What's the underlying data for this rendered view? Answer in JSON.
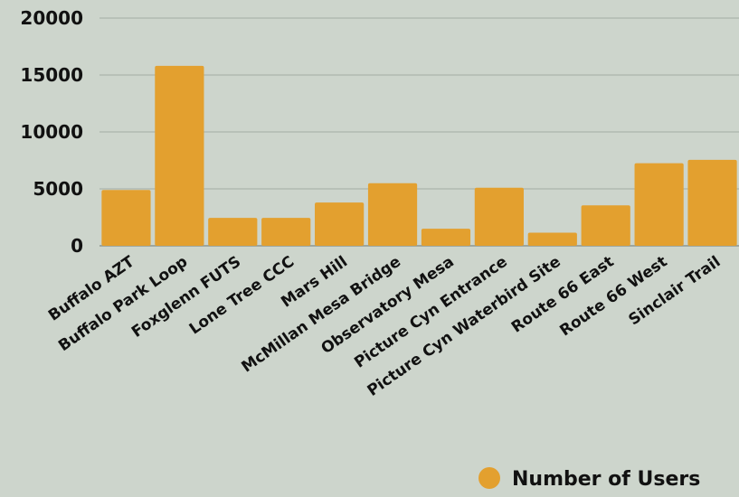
{
  "chart_data": {
    "type": "bar",
    "title": "",
    "xlabel": "",
    "ylabel": "",
    "ylim": [
      0,
      20000
    ],
    "yticks": [
      0,
      5000,
      10000,
      15000,
      20000
    ],
    "grid": true,
    "legend_position": "bottom-right",
    "categories": [
      "Buffalo AZT",
      "Buffalo Park Loop",
      "Foxglenn FUTS",
      "Lone Tree CCC",
      "Mars Hill",
      "McMillan Mesa Bridge",
      "Observatory Mesa",
      "Picture Cyn Entrance",
      "Picture Cyn Waterbird Site",
      "Route 66 East",
      "Route 66 West",
      "Sinclair Trail"
    ],
    "series": [
      {
        "name": "Number of Users",
        "color": "#e3a02f",
        "values": [
          4900,
          15800,
          2450,
          2450,
          3800,
          5500,
          1500,
          5100,
          1150,
          3550,
          7250,
          7550
        ]
      }
    ]
  },
  "colors": {
    "background": "#cdd5cc",
    "bar": "#e3a02f",
    "grid": "#a4ada3"
  }
}
